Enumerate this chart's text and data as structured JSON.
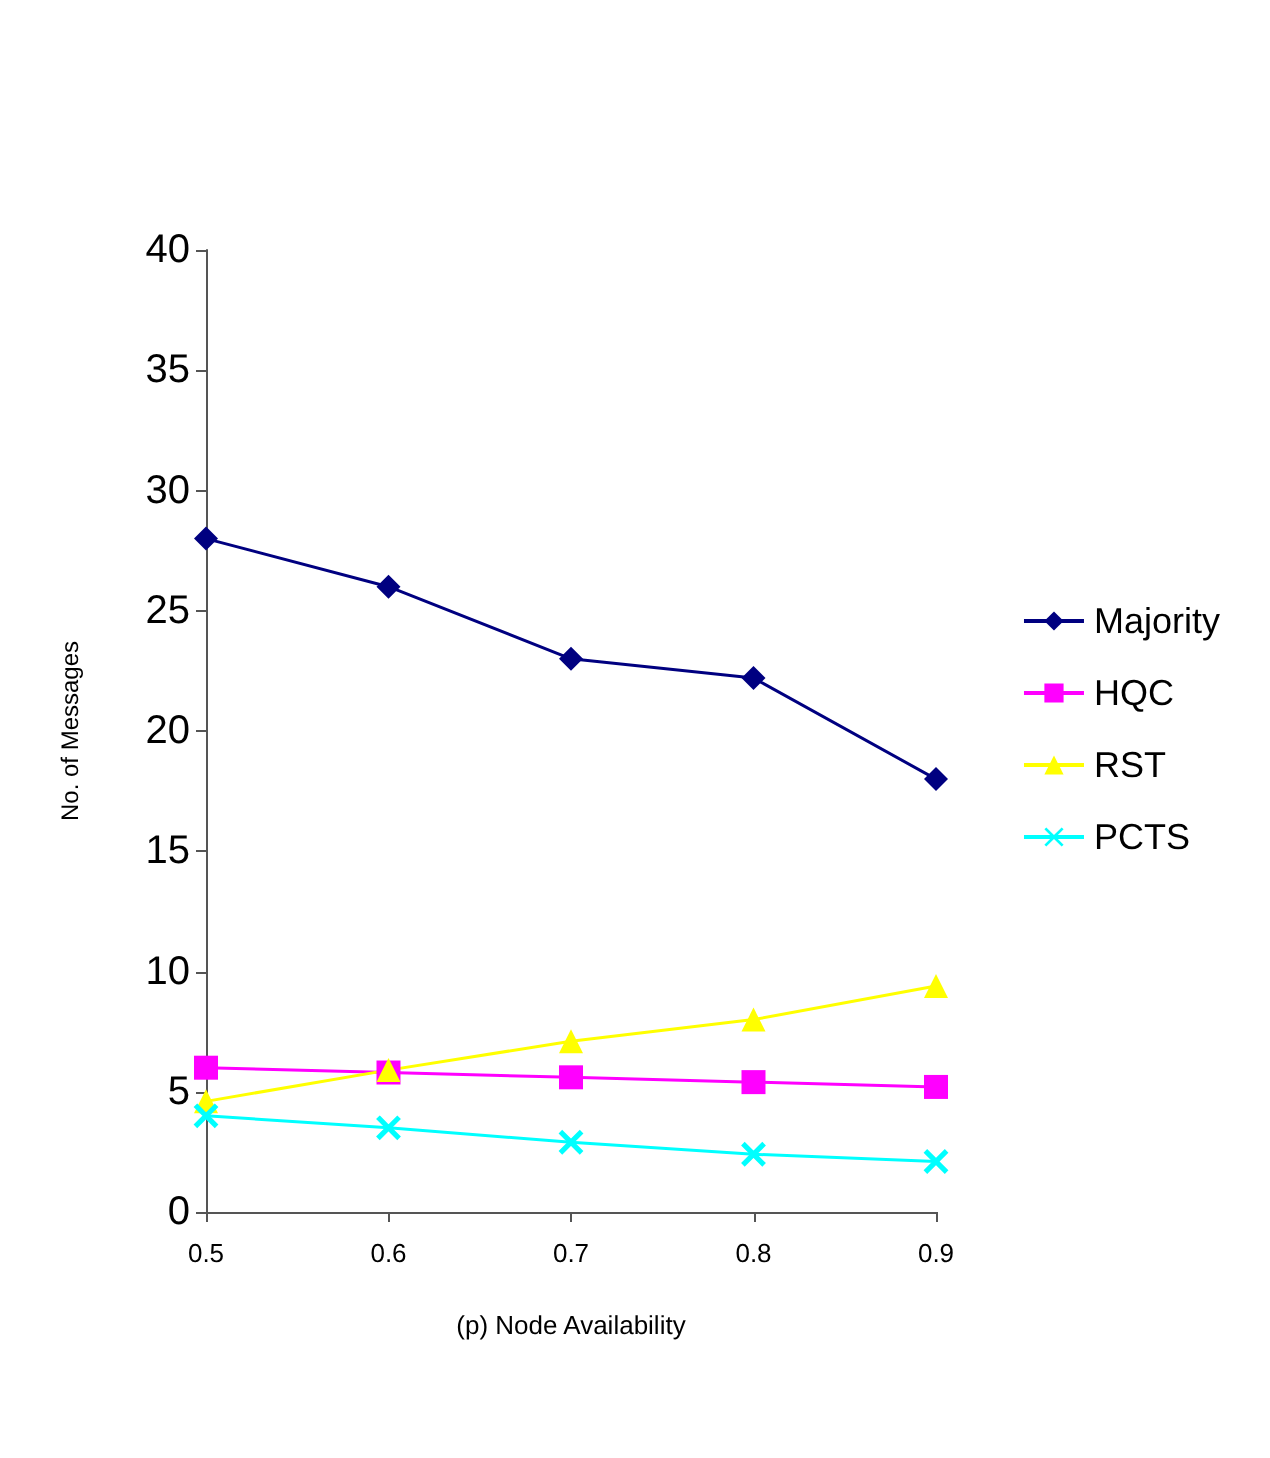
{
  "chart_data": {
    "type": "line",
    "xlabel": "(p) Node Availability",
    "ylabel": "No. of Messages",
    "x": [
      0.5,
      0.6,
      0.7,
      0.8,
      0.9
    ],
    "xlim": [
      0.5,
      0.9
    ],
    "xticks": [
      0.5,
      0.6,
      0.7,
      0.8,
      0.9
    ],
    "ylim": [
      0,
      40
    ],
    "yticks": [
      0,
      5,
      10,
      15,
      20,
      25,
      30,
      35,
      40
    ],
    "grid": false,
    "legend": "right",
    "series": [
      {
        "name": "Majority",
        "color": "#000080",
        "marker": "diamond",
        "values": [
          28,
          26,
          23,
          22.2,
          18
        ]
      },
      {
        "name": "HQC",
        "color": "#ff00ff",
        "marker": "square",
        "values": [
          6,
          5.8,
          5.6,
          5.4,
          5.2
        ]
      },
      {
        "name": "RST",
        "color": "#ffff00",
        "marker": "triangle",
        "values": [
          4.6,
          5.9,
          7.1,
          8,
          9.4
        ]
      },
      {
        "name": "PCTS",
        "color": "#00ffff",
        "marker": "cross",
        "values": [
          4,
          3.5,
          2.9,
          2.4,
          2.1
        ]
      }
    ]
  }
}
